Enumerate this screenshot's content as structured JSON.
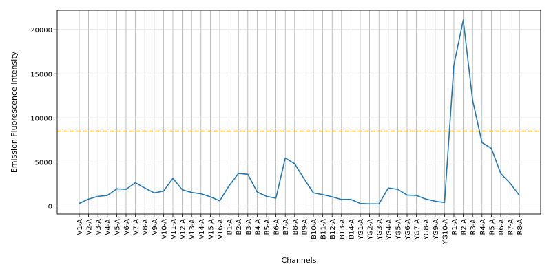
{
  "chart_data": {
    "type": "line",
    "xlabel": "Channels",
    "ylabel": "Emission Fluorescence Intensity",
    "ylim": [
      -900,
      22200
    ],
    "yticks": [
      0,
      5000,
      10000,
      15000,
      20000
    ],
    "grid": true,
    "categories": [
      "V1-A",
      "V2-A",
      "V3-A",
      "V4-A",
      "V5-A",
      "V6-A",
      "V7-A",
      "V8-A",
      "V9-A",
      "V10-A",
      "V11-A",
      "V12-A",
      "V13-A",
      "V14-A",
      "V15-A",
      "V16-A",
      "B1-A",
      "B2-A",
      "B3-A",
      "B4-A",
      "B5-A",
      "B6-A",
      "B7-A",
      "B8-A",
      "B9-A",
      "B10-A",
      "B11-A",
      "B12-A",
      "B13-A",
      "B14-A",
      "YG1-A",
      "YG2-A",
      "YG3-A",
      "YG4-A",
      "YG5-A",
      "YG6-A",
      "YG7-A",
      "YG8-A",
      "YG9-A",
      "YG10-A",
      "R1-A",
      "R2-A",
      "R3-A",
      "R4-A",
      "R5-A",
      "R6-A",
      "R7-A",
      "R8-A"
    ],
    "series": [
      {
        "color": "#1f77b4",
        "values": [
          300,
          800,
          1100,
          1200,
          1950,
          1900,
          2650,
          2050,
          1500,
          1700,
          3150,
          1850,
          1550,
          1400,
          1050,
          600,
          2300,
          3700,
          3600,
          1600,
          1100,
          900,
          5450,
          4800,
          3100,
          1500,
          1300,
          1050,
          750,
          750,
          300,
          250,
          250,
          2050,
          1900,
          1250,
          1200,
          800,
          550,
          400,
          16000,
          21100,
          12000,
          7200,
          6550,
          3700,
          2600,
          1200
        ]
      }
    ],
    "threshold": {
      "value": 8500,
      "color": "#ffa500",
      "style": "dashed"
    }
  }
}
